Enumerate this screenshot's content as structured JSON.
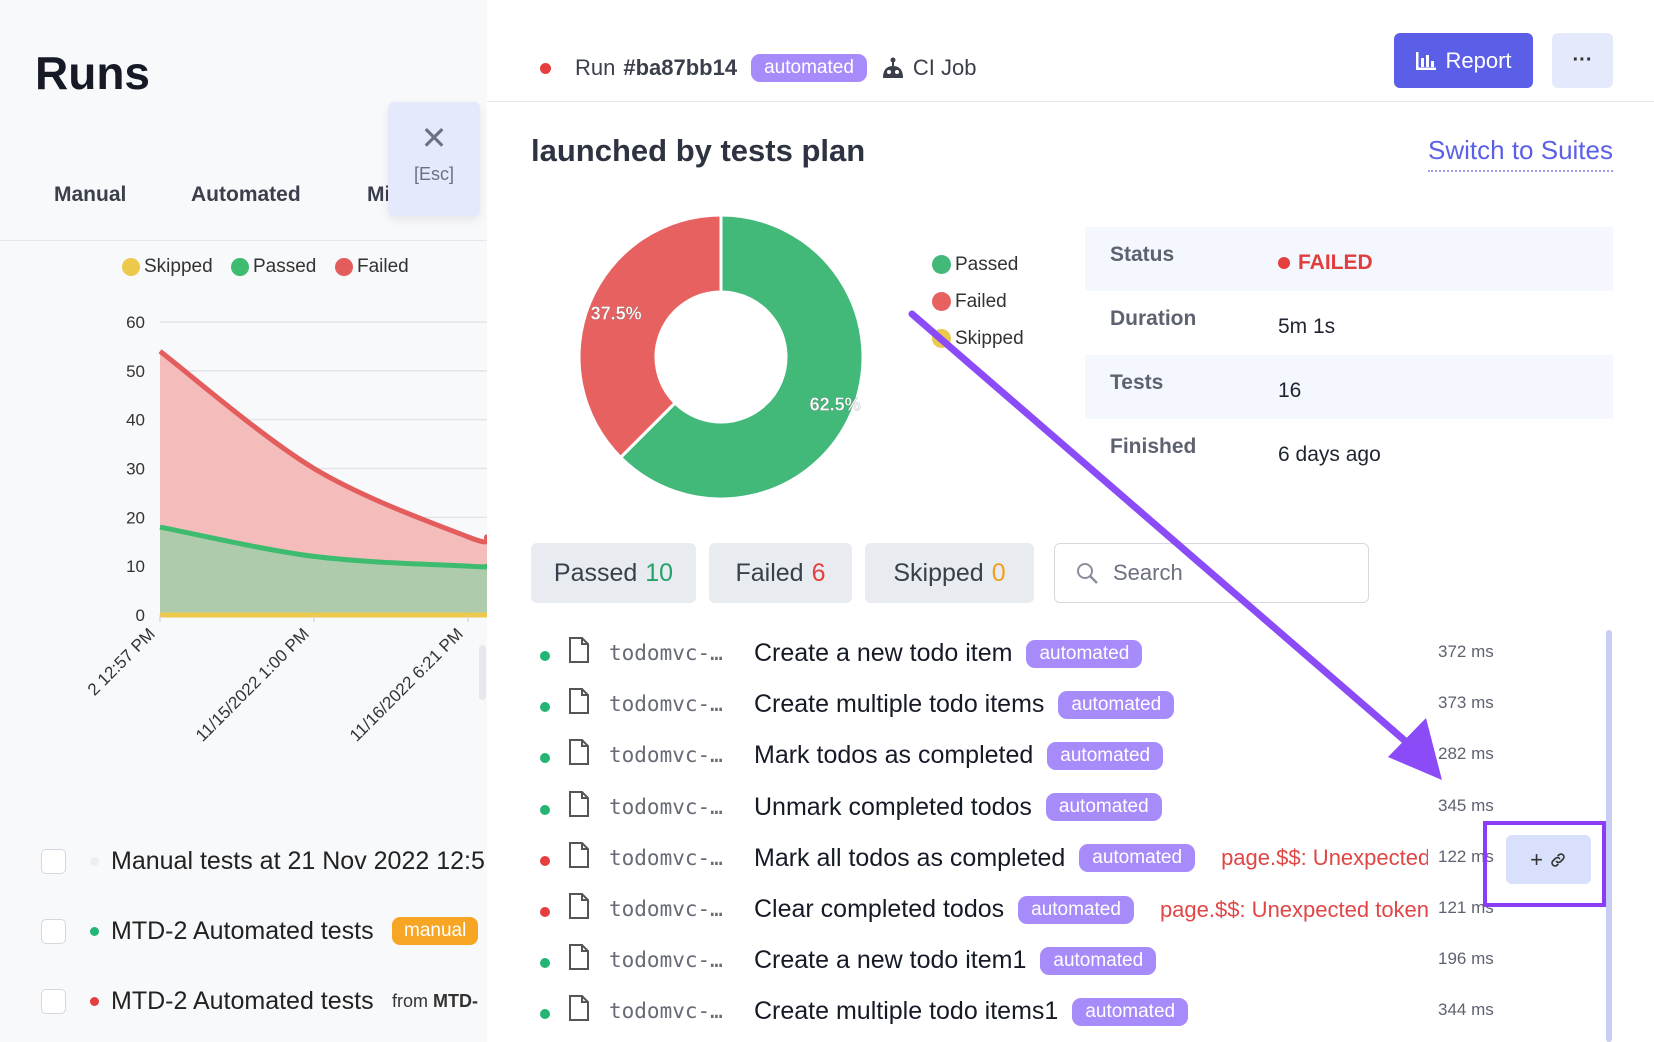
{
  "left": {
    "title": "Runs",
    "tabs": [
      "Manual",
      "Automated",
      "Mi"
    ],
    "esc": {
      "label": "[Esc]",
      "icon": "close-icon"
    },
    "runs": [
      {
        "title": "Manual tests at 21 Nov 2022 12:5",
        "status_color": "#eceef2"
      },
      {
        "title": "MTD-2 Automated tests",
        "badge": "manual",
        "status_color": "#22b573"
      },
      {
        "title": "MTD-2 Automated tests",
        "from_prefix": "from",
        "from_value": "MTD-",
        "status_color": "#e53e3e"
      }
    ]
  },
  "chart_data": {
    "type": "area",
    "stacked": true,
    "legend": [
      "Skipped",
      "Passed",
      "Failed"
    ],
    "legend_position": "top",
    "categories": [
      "2 12:57 PM",
      "11/15/2022 1:00 PM",
      "11/16/2022 6:21 PM"
    ],
    "series": [
      {
        "name": "Skipped",
        "color": "#ecc94b",
        "values": [
          0,
          0,
          0
        ]
      },
      {
        "name": "Passed",
        "color": "#3dbb6f",
        "values": [
          18,
          12,
          10
        ]
      },
      {
        "name": "Failed",
        "color": "#e35d5d",
        "values": [
          36,
          18,
          6
        ]
      }
    ],
    "yticks": [
      0,
      10,
      20,
      30,
      40,
      50,
      60
    ],
    "ylim": [
      0,
      60
    ],
    "grid": true
  },
  "header": {
    "run_prefix": "Run",
    "run_id": "#ba87bb14",
    "badge": "automated",
    "ci_label": "CI Job",
    "report_label": "Report",
    "more_label": "···"
  },
  "summary": {
    "title": "launched by tests plan",
    "switch_link": "Switch to Suites",
    "donut": {
      "slices": [
        {
          "name": "Passed",
          "value": 62.5,
          "label": "62.5%",
          "color": "#42b979"
        },
        {
          "name": "Failed",
          "value": 37.5,
          "label": "37.5%",
          "color": "#e86161"
        },
        {
          "name": "Skipped",
          "value": 0,
          "label": "",
          "color": "#ecc94b"
        }
      ]
    },
    "info": [
      {
        "label": "Status",
        "value": "FAILED"
      },
      {
        "label": "Duration",
        "value": "5m 1s"
      },
      {
        "label": "Tests",
        "value": "16"
      },
      {
        "label": "Finished",
        "value": "6 days ago"
      }
    ]
  },
  "filters": [
    {
      "label": "Passed",
      "count": "10",
      "color": "#22a36b"
    },
    {
      "label": "Failed",
      "count": "6",
      "color": "#e53e3e"
    },
    {
      "label": "Skipped",
      "count": "0",
      "color": "#f0a020"
    }
  ],
  "search": {
    "placeholder": "Search"
  },
  "tests": [
    {
      "file": "todomvc-…",
      "title": "Create a new todo item",
      "tag": "automated",
      "error": "",
      "duration": "372 ms",
      "status": "passed"
    },
    {
      "file": "todomvc-…",
      "title": "Create multiple todo items",
      "tag": "automated",
      "error": "",
      "duration": "373 ms",
      "status": "passed"
    },
    {
      "file": "todomvc-…",
      "title": "Mark todos as completed",
      "tag": "automated",
      "error": "",
      "duration": "282 ms",
      "status": "passed"
    },
    {
      "file": "todomvc-…",
      "title": "Unmark completed todos",
      "tag": "automated",
      "error": "",
      "duration": "345 ms",
      "status": "passed"
    },
    {
      "file": "todomvc-…",
      "title": "Mark all todos as completed",
      "tag": "automated",
      "error": "page.$$: Unexpected token",
      "duration": "122 ms",
      "status": "failed"
    },
    {
      "file": "todomvc-…",
      "title": "Clear completed todos",
      "tag": "automated",
      "error": "page.$$: Unexpected token",
      "duration": "121 ms",
      "status": "failed"
    },
    {
      "file": "todomvc-…",
      "title": "Create a new todo item1",
      "tag": "automated",
      "error": "",
      "duration": "196 ms",
      "status": "passed"
    },
    {
      "file": "todomvc-…",
      "title": "Create multiple todo items1",
      "tag": "automated",
      "error": "",
      "duration": "344 ms",
      "status": "passed"
    }
  ],
  "row_action": {
    "plus": "+",
    "icon": "link-icon"
  },
  "colors": {
    "accent": "#5b5fe8",
    "passed": "#22b573",
    "failed": "#e53e3e",
    "annotation": "#8b3cf7"
  }
}
